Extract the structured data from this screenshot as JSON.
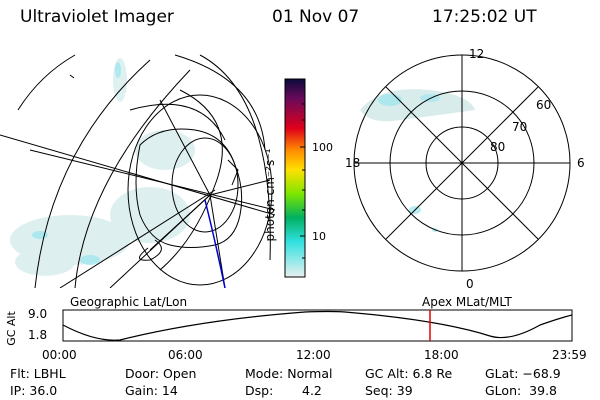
{
  "header": {
    "instrument": "Ultraviolet Imager",
    "date": "01 Nov 07",
    "time": "17:25:02 UT"
  },
  "colorbar": {
    "unit_label": "photon cm⁻²s⁻¹",
    "ticks": [
      "100",
      "10"
    ]
  },
  "polar_plot": {
    "mlt_labels": [
      "12",
      "18",
      "6",
      "0"
    ],
    "lat_labels": [
      "60",
      "70",
      "80"
    ]
  },
  "timeline": {
    "left_title": "Geographic Lat/Lon",
    "right_title": "Apex MLat/MLT",
    "axis_title": "GC Alt",
    "y_ticks": [
      "9.0",
      "1.8"
    ],
    "x_ticks": [
      "00:00",
      "06:00",
      "12:00",
      "18:00",
      "23:59"
    ],
    "marker_color": "#e00000"
  },
  "status": {
    "flt": "Flt: LBHL",
    "ip": "IP: 36.0",
    "door": "Door: Open",
    "gain": "Gain: 14",
    "mode": "Mode: Normal",
    "dsp_label": "Dsp:",
    "dsp_value": "4.2",
    "gc_alt": "GC Alt: 6.8 Re",
    "seq": "Seq: 39",
    "glat": "GLat: −68.9",
    "glon": "GLon:  39.8"
  }
}
